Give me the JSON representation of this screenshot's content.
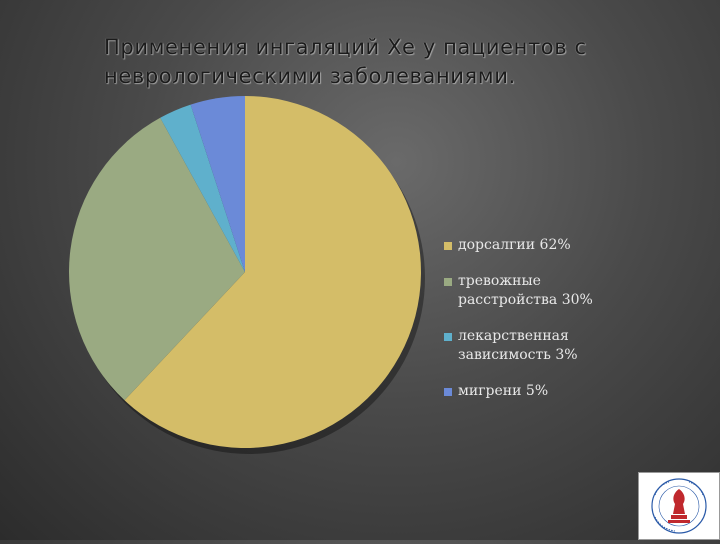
{
  "slide": {
    "title": "Применения ингаляций Хе у пациентов с неврологическими заболеваниями."
  },
  "chart_data": {
    "type": "pie",
    "title": "Применения ингаляций Хе у пациентов с неврологическими заболеваниями.",
    "categories": [
      "дорсалгии",
      "тревожные расстройства",
      "лекарственная зависимость",
      "мигрени"
    ],
    "values": [
      62,
      30,
      3,
      5
    ],
    "unit": "%",
    "legend_labels": [
      "дорсалгии 62%",
      "тревожные расстройства 30%",
      "лекарственная зависимость 3%",
      "мигрени 5%"
    ],
    "colors": [
      "#d4bd68",
      "#9aaa82",
      "#5fb0cc",
      "#6b8ad8"
    ],
    "legend_position": "right"
  },
  "logo": {
    "description_icon": "institution-emblem-icon"
  }
}
